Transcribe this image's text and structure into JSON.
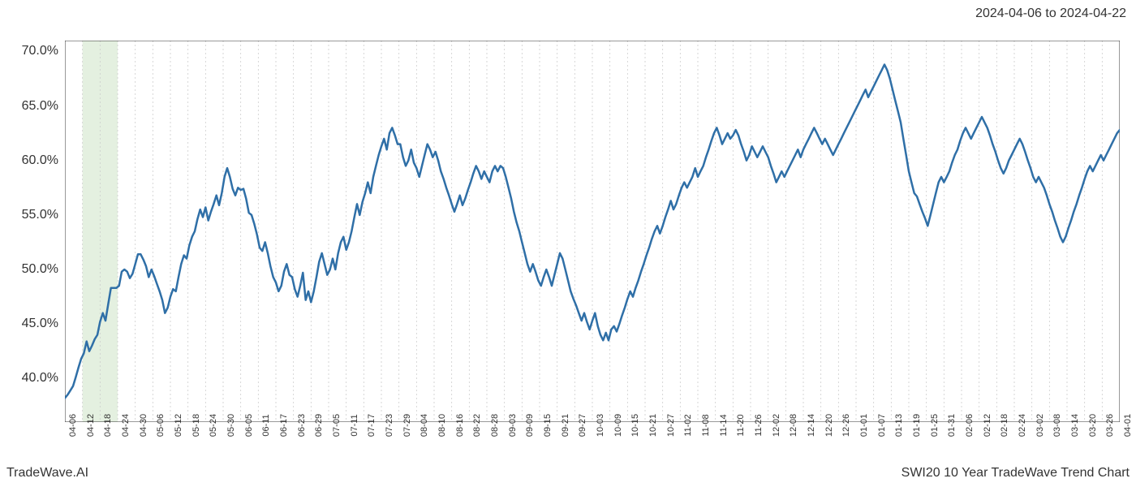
{
  "header": {
    "date_range": "2024-04-06 to 2024-04-22"
  },
  "footer": {
    "left": "TradeWave.AI",
    "right": "SWI20 10 Year TradeWave Trend Chart"
  },
  "chart": {
    "type": "line",
    "background_color": "#ffffff",
    "line_color": "#2f6fa7",
    "line_width": 2.5,
    "grid_color": "#cccccc",
    "grid_dash": "2,3",
    "border_color": "#333333",
    "highlight_band": {
      "start_label": "04-12",
      "end_label": "04-24",
      "fill_color": "#d9ead3",
      "opacity": 0.7
    },
    "ylim": [
      36,
      71
    ],
    "yticks": [
      40.0,
      45.0,
      50.0,
      55.0,
      60.0,
      65.0,
      70.0
    ],
    "ytick_labels": [
      "40.0%",
      "45.0%",
      "50.0%",
      "55.0%",
      "60.0%",
      "65.0%",
      "70.0%"
    ],
    "xtick_labels": [
      "04-06",
      "04-12",
      "04-18",
      "04-24",
      "04-30",
      "05-06",
      "05-12",
      "05-18",
      "05-24",
      "05-30",
      "06-05",
      "06-11",
      "06-17",
      "06-23",
      "06-29",
      "07-05",
      "07-11",
      "07-17",
      "07-23",
      "07-29",
      "08-04",
      "08-10",
      "08-16",
      "08-22",
      "08-28",
      "09-03",
      "09-09",
      "09-15",
      "09-21",
      "09-27",
      "10-03",
      "10-09",
      "10-15",
      "10-21",
      "10-27",
      "11-02",
      "11-08",
      "11-14",
      "11-20",
      "11-26",
      "12-02",
      "12-08",
      "12-14",
      "12-20",
      "12-26",
      "01-01",
      "01-07",
      "01-13",
      "01-19",
      "01-25",
      "01-31",
      "02-06",
      "02-12",
      "02-18",
      "02-24",
      "03-02",
      "03-08",
      "03-14",
      "03-20",
      "03-26",
      "04-01"
    ],
    "label_fontsize": 11,
    "axis_fontsize": 16,
    "text_color": "#333333",
    "series": [
      38.2,
      38.5,
      38.9,
      39.3,
      40.1,
      41.0,
      41.8,
      42.3,
      43.4,
      42.5,
      43.0,
      43.6,
      44.0,
      45.2,
      46.0,
      45.3,
      46.8,
      48.3,
      48.3,
      48.3,
      48.5,
      49.8,
      50.0,
      49.8,
      49.2,
      49.6,
      50.5,
      51.4,
      51.4,
      50.9,
      50.3,
      49.3,
      50.0,
      49.4,
      48.7,
      48.0,
      47.2,
      46.0,
      46.5,
      47.5,
      48.2,
      48.0,
      49.3,
      50.5,
      51.3,
      51.0,
      52.2,
      53.0,
      53.5,
      54.6,
      55.5,
      54.8,
      55.7,
      54.5,
      55.3,
      56.0,
      56.8,
      55.9,
      57.0,
      58.5,
      59.3,
      58.5,
      57.4,
      56.8,
      57.5,
      57.3,
      57.4,
      56.5,
      55.2,
      55.0,
      54.2,
      53.2,
      52.0,
      51.7,
      52.5,
      51.5,
      50.3,
      49.3,
      48.8,
      48.0,
      48.5,
      49.8,
      50.5,
      49.5,
      49.3,
      48.2,
      47.5,
      48.5,
      49.7,
      47.2,
      48.0,
      47.0,
      48.0,
      49.3,
      50.7,
      51.5,
      50.5,
      49.5,
      50.0,
      51.0,
      50.0,
      51.5,
      52.5,
      53.0,
      51.8,
      52.5,
      53.5,
      54.8,
      56.0,
      55.0,
      56.2,
      57.0,
      58.0,
      57.0,
      58.5,
      59.5,
      60.5,
      61.3,
      62.0,
      61.0,
      62.5,
      63.0,
      62.3,
      61.5,
      61.5,
      60.3,
      59.5,
      60.0,
      61.0,
      59.8,
      59.3,
      58.5,
      59.5,
      60.5,
      61.5,
      61.0,
      60.3,
      60.8,
      60.0,
      59.0,
      58.3,
      57.5,
      56.8,
      56.0,
      55.3,
      56.0,
      56.8,
      55.9,
      56.5,
      57.3,
      58.0,
      58.8,
      59.5,
      59.0,
      58.3,
      59.0,
      58.5,
      58.0,
      59.0,
      59.5,
      59.0,
      59.5,
      59.3,
      58.5,
      57.5,
      56.5,
      55.3,
      54.3,
      53.5,
      52.5,
      51.5,
      50.5,
      49.8,
      50.5,
      49.8,
      49.0,
      48.5,
      49.3,
      50.0,
      49.3,
      48.5,
      49.5,
      50.5,
      51.5,
      51.0,
      50.0,
      49.0,
      48.0,
      47.3,
      46.7,
      46.0,
      45.3,
      46.0,
      45.2,
      44.5,
      45.3,
      46.0,
      44.8,
      44.0,
      43.5,
      44.2,
      43.5,
      44.5,
      44.8,
      44.3,
      45.0,
      45.8,
      46.5,
      47.3,
      48.0,
      47.5,
      48.3,
      49.0,
      49.8,
      50.5,
      51.3,
      52.0,
      52.8,
      53.5,
      54.0,
      53.3,
      54.0,
      54.8,
      55.5,
      56.3,
      55.5,
      56.0,
      56.8,
      57.5,
      58.0,
      57.5,
      58.0,
      58.5,
      59.3,
      58.5,
      59.0,
      59.5,
      60.3,
      61.0,
      61.8,
      62.5,
      63.0,
      62.3,
      61.5,
      62.0,
      62.5,
      62.0,
      62.3,
      62.8,
      62.3,
      61.5,
      60.8,
      60.0,
      60.5,
      61.3,
      60.8,
      60.3,
      60.8,
      61.3,
      60.8,
      60.3,
      59.5,
      58.8,
      58.0,
      58.5,
      59.0,
      58.5,
      59.0,
      59.5,
      60.0,
      60.5,
      61.0,
      60.3,
      61.0,
      61.5,
      62.0,
      62.5,
      63.0,
      62.5,
      62.0,
      61.5,
      62.0,
      61.5,
      61.0,
      60.5,
      61.0,
      61.5,
      62.0,
      62.5,
      63.0,
      63.5,
      64.0,
      64.5,
      65.0,
      65.5,
      66.0,
      66.5,
      65.8,
      66.3,
      66.8,
      67.3,
      67.8,
      68.3,
      68.8,
      68.3,
      67.5,
      66.5,
      65.5,
      64.5,
      63.5,
      62.0,
      60.5,
      59.0,
      58.0,
      57.0,
      56.7,
      56.0,
      55.3,
      54.7,
      54.0,
      55.0,
      56.0,
      57.0,
      58.0,
      58.5,
      58.0,
      58.5,
      59.0,
      59.8,
      60.5,
      61.0,
      61.8,
      62.5,
      63.0,
      62.5,
      62.0,
      62.5,
      63.0,
      63.5,
      64.0,
      63.5,
      63.0,
      62.3,
      61.5,
      60.8,
      60.0,
      59.3,
      58.8,
      59.3,
      60.0,
      60.5,
      61.0,
      61.5,
      62.0,
      61.5,
      60.8,
      60.0,
      59.3,
      58.5,
      58.0,
      58.5,
      58.0,
      57.5,
      56.8,
      56.0,
      55.3,
      54.5,
      53.8,
      53.0,
      52.5,
      53.0,
      53.8,
      54.5,
      55.3,
      56.0,
      56.8,
      57.5,
      58.3,
      59.0,
      59.5,
      59.0,
      59.5,
      60.0,
      60.5,
      60.0,
      60.5,
      61.0,
      61.5,
      62.0,
      62.5,
      62.8
    ]
  }
}
